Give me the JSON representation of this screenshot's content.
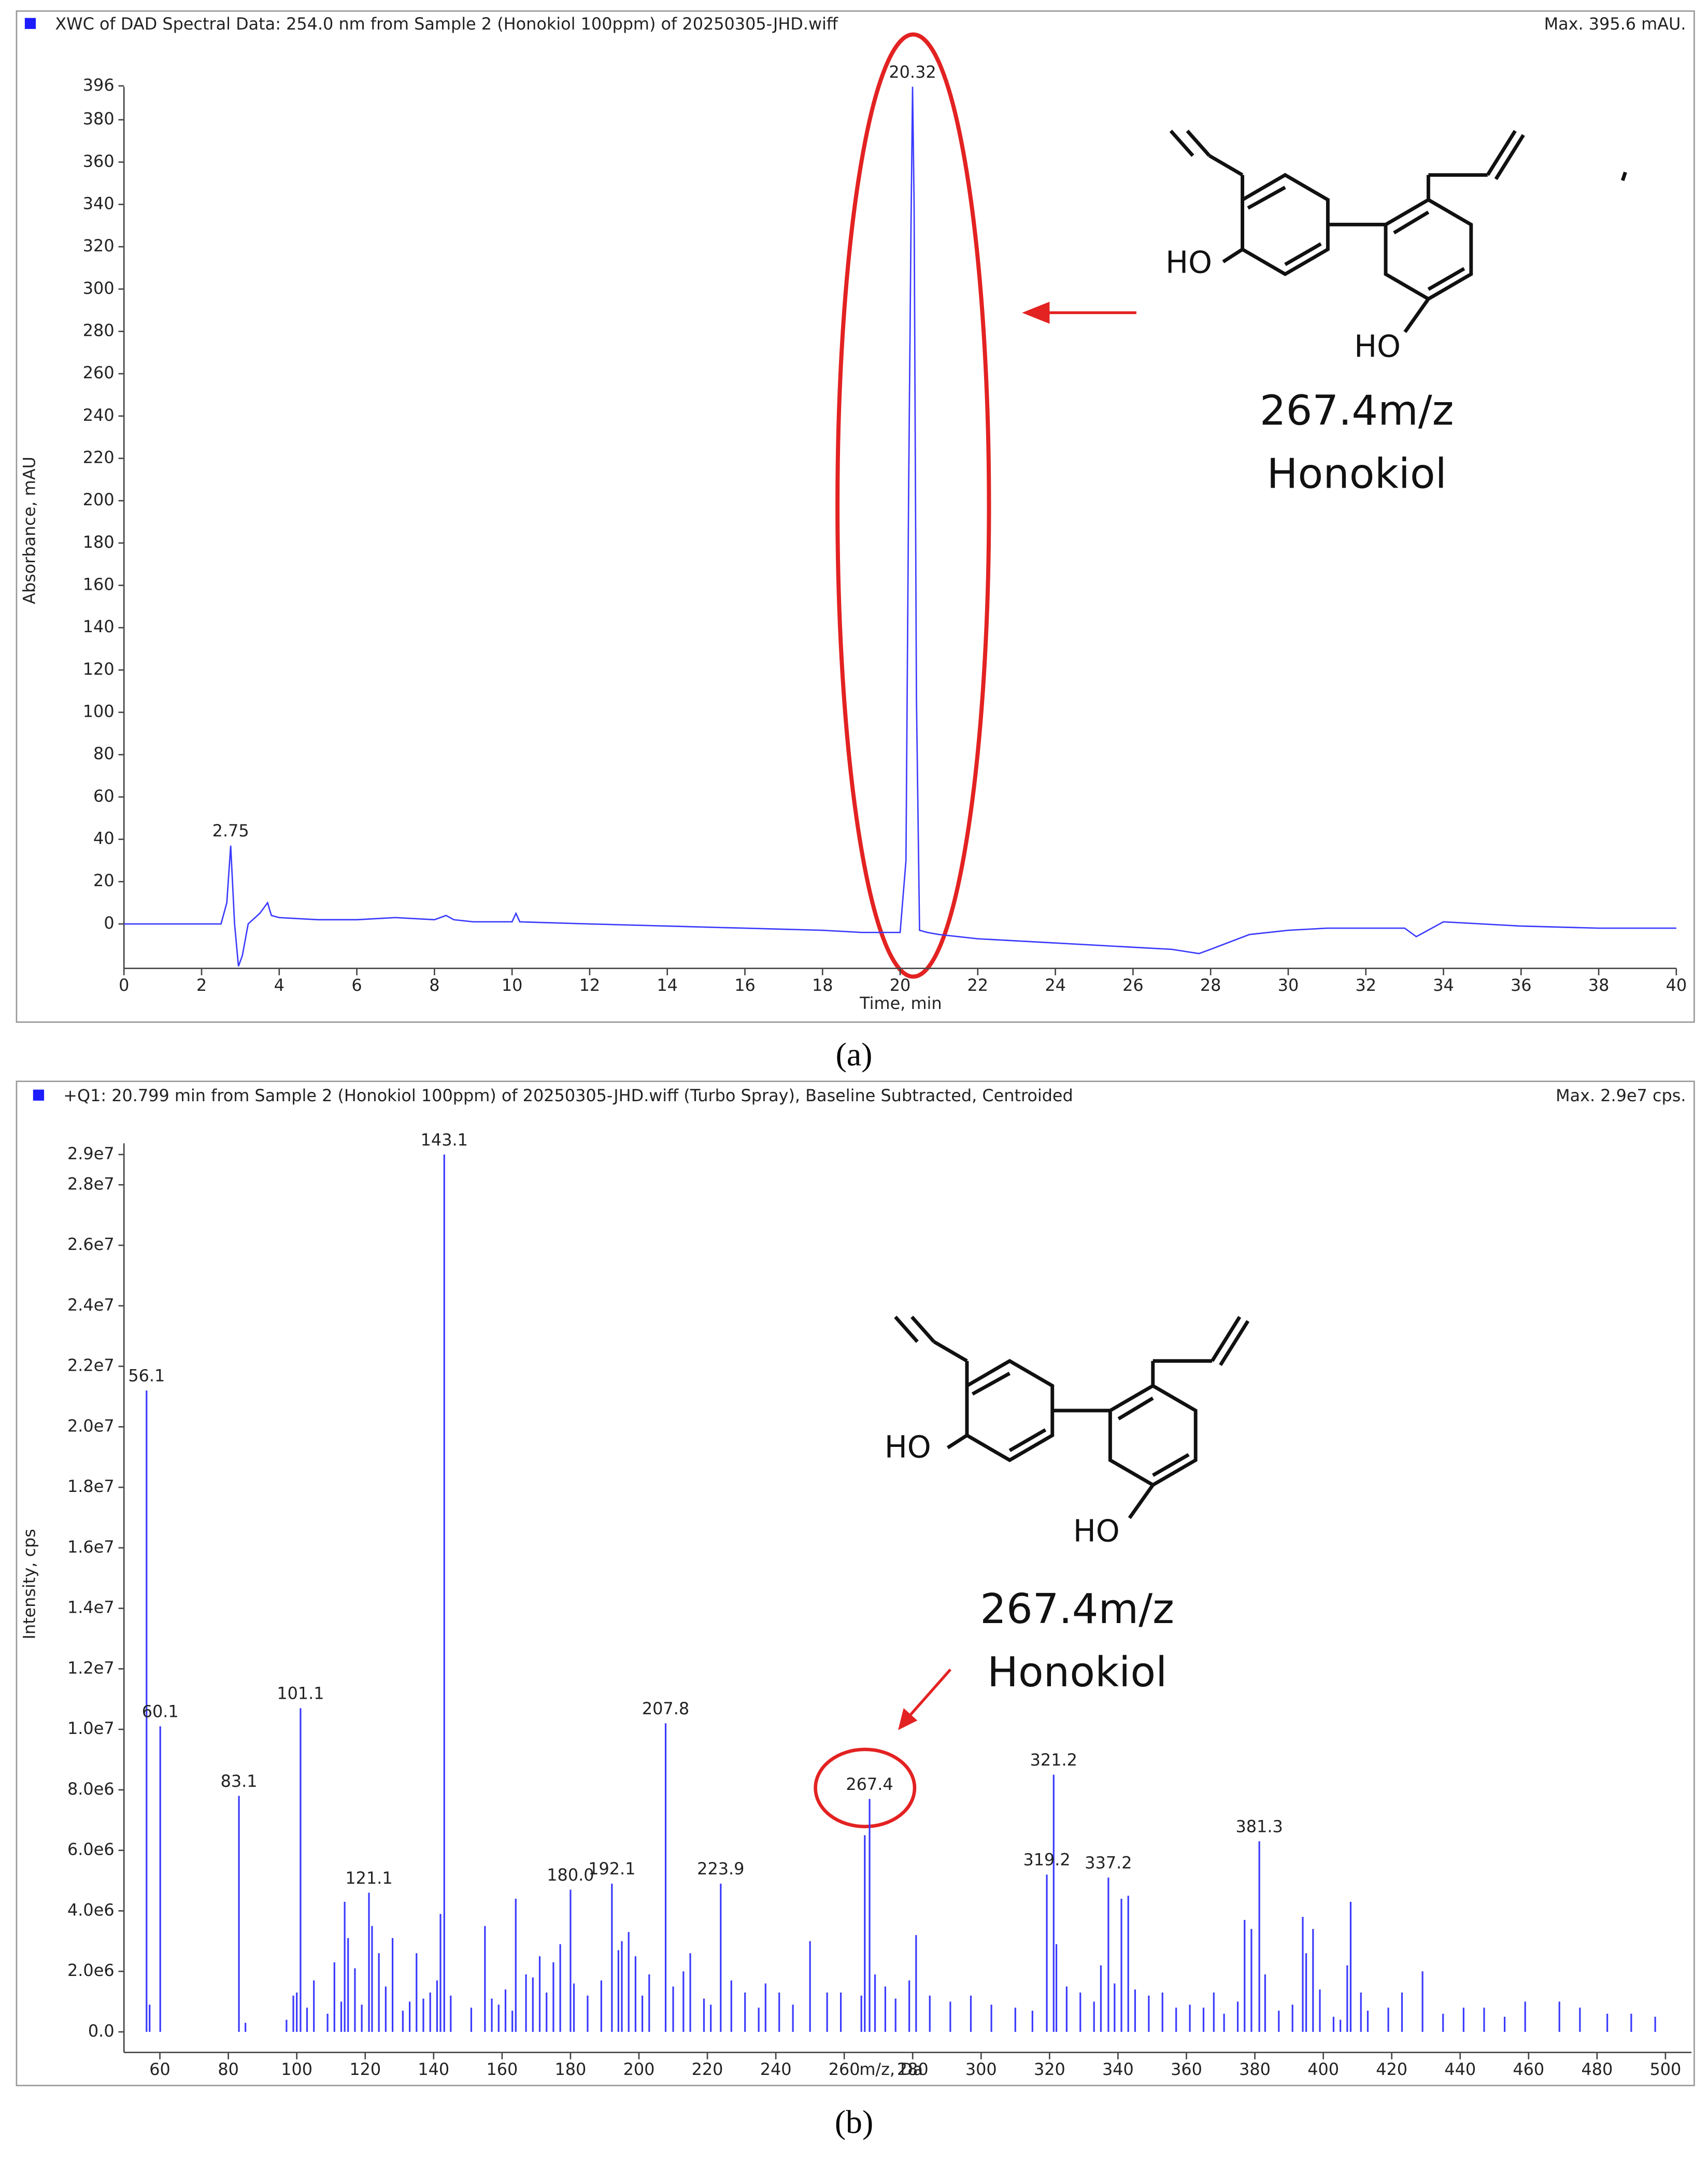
{
  "chart_data": [
    {
      "type": "line",
      "title": "XWC of DAD Spectral Data: 254.0 nm from Sample 2 (Honokiol 100ppm) of 20250305-JHD.wiff",
      "max_label": "Max. 395.6 mAU.",
      "x_label": "Time, min",
      "y_label": "Absorbance, mAU",
      "xlim": [
        0,
        40
      ],
      "ylim": [
        -21,
        419
      ],
      "xticks": [
        0,
        2,
        4,
        6,
        8,
        10,
        12,
        14,
        16,
        18,
        20,
        22,
        24,
        26,
        28,
        30,
        32,
        34,
        36,
        38,
        40
      ],
      "yticks": [
        0,
        20,
        40,
        60,
        80,
        100,
        120,
        140,
        160,
        180,
        200,
        220,
        240,
        260,
        280,
        300,
        320,
        340,
        360,
        380,
        396
      ],
      "color": "#3a3aff",
      "x": [
        0,
        1,
        2,
        2.5,
        2.65,
        2.75,
        2.85,
        2.95,
        3.05,
        3.2,
        3.5,
        3.7,
        3.8,
        4,
        5,
        6,
        7,
        8,
        8.3,
        8.5,
        9,
        10,
        10.1,
        10.2,
        12,
        14,
        16,
        18,
        19,
        20,
        20.15,
        20.22,
        20.28,
        20.32,
        20.36,
        20.42,
        20.5,
        20.7,
        21,
        22,
        24,
        26,
        27,
        27.7,
        28,
        29,
        30,
        31,
        32,
        33,
        33.3,
        34,
        35,
        36,
        38,
        40
      ],
      "values": [
        0,
        0,
        0,
        0,
        10,
        37,
        0,
        -20,
        -15,
        0,
        5,
        10,
        4,
        3,
        2,
        2,
        3,
        2,
        4,
        2,
        1,
        1,
        5,
        1,
        0,
        -1,
        -2,
        -3,
        -4,
        -4,
        30,
        208,
        330,
        395.6,
        340,
        107,
        -3,
        -4,
        -5,
        -7,
        -9,
        -11,
        -12,
        -14,
        -12,
        -5,
        -3,
        -2,
        -2,
        -2,
        -6,
        1,
        0,
        -1,
        -2,
        -2
      ],
      "peak_labels": [
        2.75,
        20.32
      ],
      "compound_mz": "267.4m/z",
      "compound_name": "Honokiol",
      "structure_labels": [
        "HO",
        "HO"
      ],
      "panel_label": "(a)"
    },
    {
      "type": "stick",
      "title": "+Q1: 20.799 min from Sample 2 (Honokiol 100ppm) of 20250305-JHD.wiff (Turbo Spray), Baseline Subtracted, Centroided",
      "max_label": "Max. 2.9e7 cps.",
      "x_label": "m/z, Da",
      "y_label": "Intensity, cps",
      "xlim": [
        49.5,
        507.6
      ],
      "ylim": [
        -680000,
        30600000
      ],
      "xticks": [
        60,
        80,
        100,
        120,
        140,
        160,
        180,
        200,
        220,
        240,
        260,
        280,
        300,
        320,
        340,
        360,
        380,
        400,
        420,
        440,
        460,
        480,
        500
      ],
      "yticks": [
        {
          "value": 0,
          "label": "0.0"
        },
        {
          "value": 2000000,
          "label": "2.0e6"
        },
        {
          "value": 4000000,
          "label": "4.0e6"
        },
        {
          "value": 6000000,
          "label": "6.0e6"
        },
        {
          "value": 8000000,
          "label": "8.0e6"
        },
        {
          "value": 10000000,
          "label": "1.0e7"
        },
        {
          "value": 12000000,
          "label": "1.2e7"
        },
        {
          "value": 14000000,
          "label": "1.4e7"
        },
        {
          "value": 16000000,
          "label": "1.6e7"
        },
        {
          "value": 18000000,
          "label": "1.8e7"
        },
        {
          "value": 20000000,
          "label": "2.0e7"
        },
        {
          "value": 22000000,
          "label": "2.2e7"
        },
        {
          "value": 24000000,
          "label": "2.4e7"
        },
        {
          "value": 26000000,
          "label": "2.6e7"
        },
        {
          "value": 28000000,
          "label": "2.8e7"
        },
        {
          "value": 29000000,
          "label": "2.9e7"
        }
      ],
      "color": "#3a3aff",
      "x": [
        56.1,
        57,
        60.1,
        83.1,
        85,
        97,
        99,
        100,
        101.1,
        103,
        105,
        109,
        111,
        113,
        114,
        115,
        117,
        119,
        121.1,
        122,
        124,
        126,
        128,
        131,
        133,
        135,
        137,
        139,
        141,
        142,
        143.1,
        145,
        151,
        155,
        157,
        159,
        161,
        163,
        164,
        167,
        169,
        171,
        173,
        175,
        177,
        180.0,
        181,
        185,
        189,
        192.1,
        194,
        195,
        197,
        199,
        201,
        203,
        207.8,
        210,
        213,
        215,
        219,
        221,
        223.9,
        227,
        231,
        235,
        237,
        241,
        245,
        250,
        255,
        259,
        265,
        266,
        267.4,
        269,
        272,
        275,
        279,
        281,
        285,
        291,
        297,
        303,
        310,
        315,
        319.2,
        321.2,
        322,
        325,
        329,
        333,
        335,
        337.2,
        339,
        341,
        343,
        345,
        349,
        353,
        357,
        361,
        365,
        368,
        371,
        375,
        377,
        379,
        381.3,
        383,
        387,
        391,
        394,
        395,
        397,
        399,
        403,
        405,
        407,
        408,
        411,
        413,
        419,
        423,
        429,
        435,
        441,
        447,
        453,
        459,
        469,
        475,
        483,
        490,
        497
      ],
      "values": [
        21200000,
        900000,
        10100000,
        7800000,
        300000,
        400000,
        1200000,
        1300000,
        10700000,
        800000,
        1700000,
        600000,
        2300000,
        1000000,
        4300000,
        3100000,
        2100000,
        900000,
        4600000,
        3500000,
        2600000,
        1500000,
        3100000,
        700000,
        1000000,
        2600000,
        1100000,
        1300000,
        1700000,
        3900000,
        29000000,
        1200000,
        800000,
        3500000,
        1100000,
        900000,
        1400000,
        700000,
        4400000,
        1900000,
        1800000,
        2500000,
        1300000,
        2300000,
        2900000,
        4700000,
        1600000,
        1200000,
        1700000,
        4900000,
        2700000,
        3000000,
        3300000,
        2500000,
        1200000,
        1900000,
        10200000,
        1500000,
        2000000,
        2600000,
        1100000,
        900000,
        4900000,
        1700000,
        1300000,
        800000,
        1600000,
        1300000,
        900000,
        3000000,
        1300000,
        1300000,
        1200000,
        6500000,
        7700000,
        1900000,
        1500000,
        1100000,
        1700000,
        3200000,
        1200000,
        1000000,
        1200000,
        900000,
        800000,
        700000,
        5200000,
        8500000,
        2900000,
        1500000,
        1300000,
        1000000,
        2200000,
        5100000,
        1600000,
        4400000,
        4500000,
        1400000,
        1200000,
        1300000,
        800000,
        900000,
        800000,
        1300000,
        600000,
        1000000,
        3700000,
        3400000,
        6300000,
        1900000,
        700000,
        900000,
        3800000,
        2600000,
        3400000,
        1400000,
        500000,
        400000,
        2200000,
        4300000,
        1300000,
        700000,
        800000,
        1300000,
        2000000,
        600000,
        800000,
        800000,
        500000,
        1000000,
        1000000,
        800000,
        600000,
        600000,
        500000
      ],
      "peak_labels": [
        56.1,
        60.1,
        83.1,
        101.1,
        121.1,
        143.1,
        {
          "value": 180,
          "label": "180.0"
        },
        192.1,
        207.8,
        223.9,
        267.4,
        319.2,
        321.2,
        337.2,
        381.3
      ],
      "compound_mz": "267.4m/z",
      "compound_name": "Honokiol",
      "structure_labels": [
        "HO",
        "HO"
      ],
      "panel_label": "(b)"
    }
  ]
}
